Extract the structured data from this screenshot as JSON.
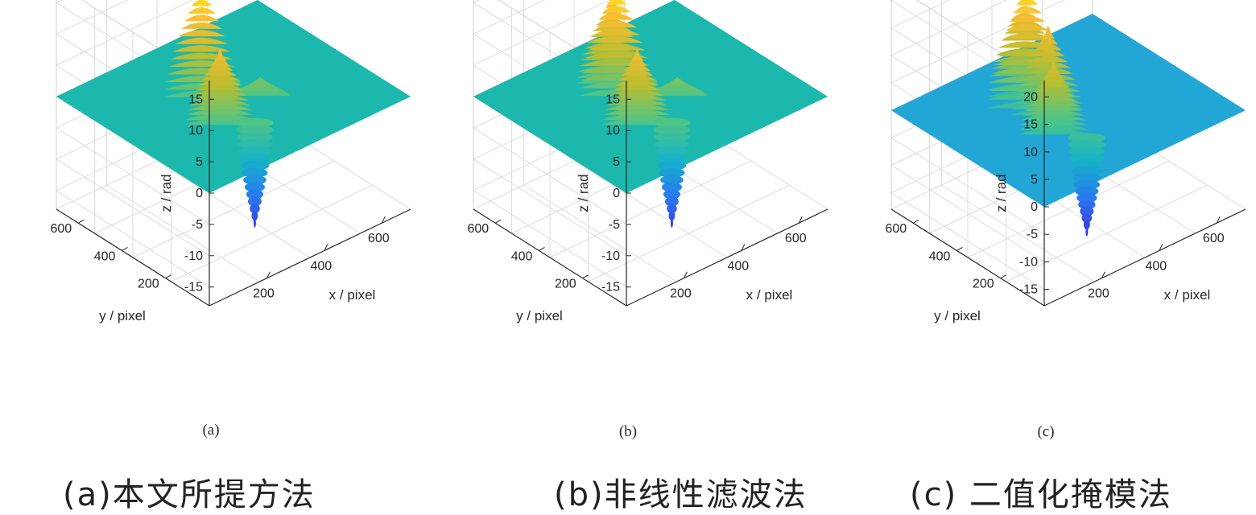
{
  "chart_data": [
    {
      "type": "surface",
      "panel_tag": "(a)",
      "caption": "(a)本文所提方法",
      "xlabel": "x / pixel",
      "ylabel": "y / pixel",
      "zlabel": "z / rad",
      "xticks": [
        200,
        400,
        600
      ],
      "yticks": [
        200,
        400,
        600
      ],
      "zticks": [
        -15,
        -10,
        -5,
        0,
        5,
        10,
        15
      ],
      "xlim": [
        0,
        700
      ],
      "ylim": [
        0,
        700
      ],
      "zlim": [
        -18,
        18
      ],
      "base_level": 0,
      "features": [
        {
          "x": 300,
          "y": 430,
          "z": 17
        },
        {
          "x": 250,
          "y": 280,
          "z": 11
        },
        {
          "x": 420,
          "y": 320,
          "z": 2
        },
        {
          "x": 310,
          "y": 200,
          "z": -16
        },
        {
          "x": 380,
          "y": 430,
          "z": -3
        }
      ]
    },
    {
      "type": "surface",
      "panel_tag": "(b)",
      "caption": "(b)非线性滤波法",
      "xlabel": "x / pixel",
      "ylabel": "y / pixel",
      "zlabel": "z / rad",
      "xticks": [
        200,
        400,
        600
      ],
      "yticks": [
        200,
        400,
        600
      ],
      "zticks": [
        -15,
        -10,
        -5,
        0,
        5,
        10,
        15
      ],
      "xlim": [
        0,
        700
      ],
      "ylim": [
        0,
        700
      ],
      "zlim": [
        -18,
        18
      ],
      "base_level": 0,
      "features": [
        {
          "x": 300,
          "y": 440,
          "z": 17
        },
        {
          "x": 250,
          "y": 280,
          "z": 11
        },
        {
          "x": 330,
          "y": 500,
          "z": 13
        },
        {
          "x": 420,
          "y": 320,
          "z": 2
        },
        {
          "x": 310,
          "y": 200,
          "z": -16
        },
        {
          "x": 380,
          "y": 430,
          "z": -3
        }
      ]
    },
    {
      "type": "surface",
      "panel_tag": "(c)",
      "caption": "(c) 二值化掩模法",
      "xlabel": "x / pixel",
      "ylabel": "y / pixel",
      "zlabel": "z / rad",
      "xticks": [
        200,
        400,
        600
      ],
      "yticks": [
        200,
        400,
        600
      ],
      "zticks": [
        -15,
        -10,
        -5,
        0,
        5,
        10,
        15,
        20
      ],
      "xlim": [
        0,
        700
      ],
      "ylim": [
        0,
        700
      ],
      "zlim": [
        -18,
        23
      ],
      "base_level": 0,
      "features": [
        {
          "x": 290,
          "y": 460,
          "z": 22
        },
        {
          "x": 320,
          "y": 510,
          "z": 18
        },
        {
          "x": 260,
          "y": 300,
          "z": 12
        },
        {
          "x": 310,
          "y": 390,
          "z": 15
        },
        {
          "x": 300,
          "y": 200,
          "z": -17
        },
        {
          "x": 380,
          "y": 440,
          "z": -4
        }
      ]
    }
  ],
  "colors": {
    "axis": "#262626",
    "grid": "#dcdcdc",
    "plane_a": "#1cb8ad",
    "plane_b": "#1cb8ad",
    "plane_c": "#22a6d6",
    "colormap": [
      "#3e2fd8",
      "#2a78f0",
      "#14b2c8",
      "#4ec585",
      "#bdbd2e",
      "#fbbd32",
      "#f8f517"
    ]
  }
}
